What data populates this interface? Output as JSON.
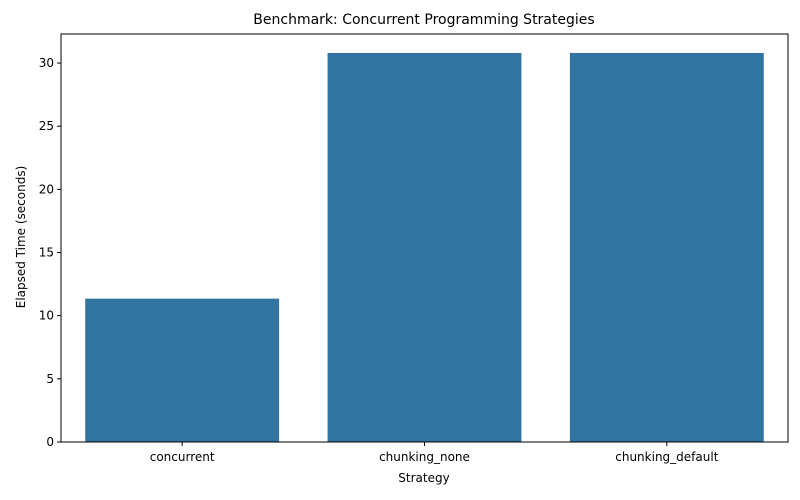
{
  "chart_data": {
    "type": "bar",
    "title": "Benchmark: Concurrent Programming Strategies",
    "xlabel": "Strategy",
    "ylabel": "Elapsed Time (seconds)",
    "categories": [
      "concurrent",
      "chunking_none",
      "chunking_default"
    ],
    "values": [
      11.35,
      30.8,
      30.8
    ],
    "ylim": [
      0,
      32.3
    ],
    "yticks": [
      0,
      5,
      10,
      15,
      20,
      25,
      30
    ],
    "grid": false,
    "bar_color": "#3274a1"
  }
}
